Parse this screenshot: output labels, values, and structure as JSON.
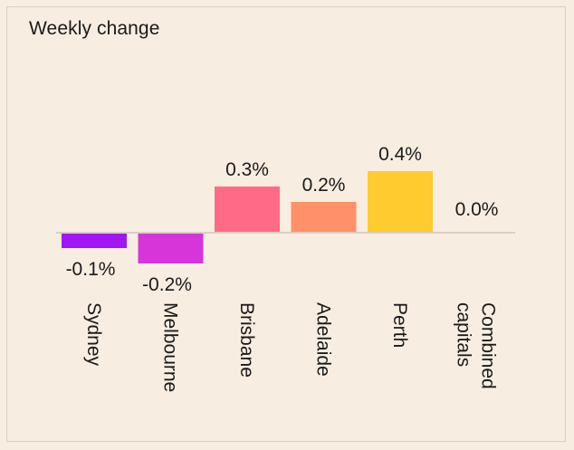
{
  "chart_data": {
    "type": "bar",
    "title": "Weekly change",
    "categories": [
      "Sydney",
      "Melbourne",
      "Brisbane",
      "Adelaide",
      "Perth",
      "Combined capitals"
    ],
    "category_lines": [
      [
        "Sydney"
      ],
      [
        "Melbourne"
      ],
      [
        "Brisbane"
      ],
      [
        "Adelaide"
      ],
      [
        "Perth"
      ],
      [
        "Combined",
        "capitals"
      ]
    ],
    "values": [
      -0.1,
      -0.2,
      0.3,
      0.2,
      0.4,
      0.0
    ],
    "value_labels": [
      "-0.1%",
      "-0.2%",
      "0.3%",
      "0.2%",
      "0.4%",
      "0.0%"
    ],
    "colors": [
      "#9f18f2",
      "#d535d9",
      "#ff6b86",
      "#ff9068",
      "#ffcb2e",
      "#f7eee1"
    ],
    "baseline_color": "#d9cfc2",
    "grid": false,
    "legend": "none"
  }
}
